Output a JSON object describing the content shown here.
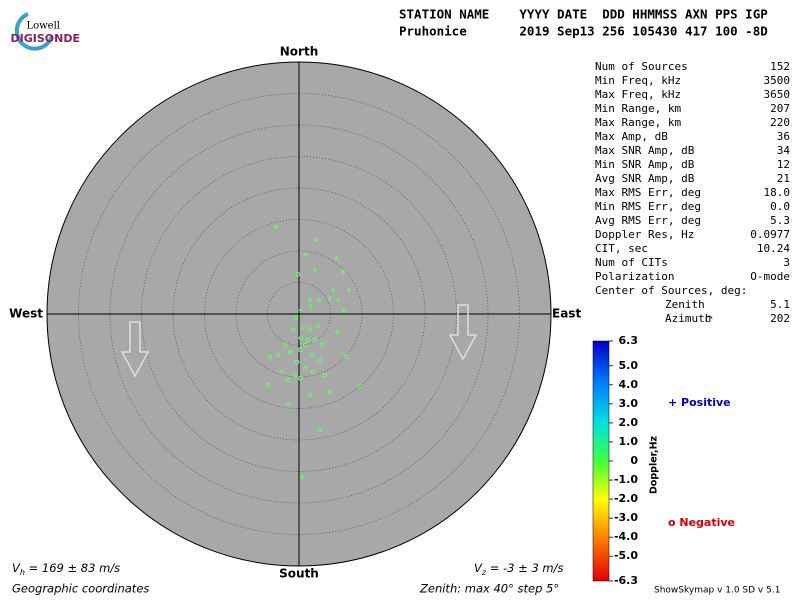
{
  "logo": {
    "line1": "Lowell",
    "line2": "DIGISONDE"
  },
  "header": {
    "labels": "STATION NAME    YYYY DATE  DDD HHMMSS AXN PPS IGP",
    "values": "Pruhonice       2019 Sep13 256 105430 417 100 -8D"
  },
  "stats": {
    "rows": [
      {
        "label": "Num of Sources",
        "value": "152"
      },
      {
        "label": "Min Freq, kHz",
        "value": "3500"
      },
      {
        "label": "Max Freq, kHz",
        "value": "3650"
      },
      {
        "label": "Min Range, km",
        "value": "207"
      },
      {
        "label": "Max Range, km",
        "value": "220"
      },
      {
        "label": "Max Amp, dB",
        "value": "36"
      },
      {
        "label": "Max SNR Amp, dB",
        "value": "34"
      },
      {
        "label": "Min SNR Amp, dB",
        "value": "12"
      },
      {
        "label": "Avg SNR Amp, dB",
        "value": "21"
      },
      {
        "label": "Max RMS Err, deg",
        "value": "18.0"
      },
      {
        "label": "Min RMS Err, deg",
        "value": "0.0"
      },
      {
        "label": "Avg RMS Err, deg",
        "value": "5.3"
      },
      {
        "label": "Doppler Res, Hz",
        "value": "0.0977"
      },
      {
        "label": "CIT, sec",
        "value": "10.24"
      },
      {
        "label": "Num of CITs",
        "value": "3"
      },
      {
        "label": "Polarization",
        "value": "O-mode"
      }
    ],
    "center": {
      "title": "Center of Sources, deg:",
      "rows": [
        {
          "label": "Zenith",
          "value": "5.1"
        },
        {
          "label": "Azimuth",
          "value": "202"
        }
      ]
    }
  },
  "footer": {
    "vh": {
      "symbol": "V",
      "sub": "h",
      "text": " = 169 ± 83 m/s"
    },
    "vz": {
      "symbol": "V",
      "sub": "z",
      "text": " = -3 ± 3 m/s"
    },
    "coordinates": "Geographic coordinates",
    "zenith": "Zenith: max 40°  step 5°",
    "version": "ShowSkymap v 1.0  SD v 5.1"
  },
  "chart_data": {
    "type": "polar-scatter",
    "directions": {
      "north": "North",
      "south": "South",
      "east": "East",
      "west": "West"
    },
    "rlim": [
      0,
      40
    ],
    "rticks": [
      5,
      10,
      15,
      20,
      25,
      30,
      35
    ],
    "series": [
      {
        "name": "+ Positive",
        "marker": "plus",
        "color": "#66ff66",
        "x": [
          -3.7,
          2.7,
          1.0,
          2.5,
          5.9,
          7.0,
          5.4,
          7.9,
          4.9,
          1.7,
          3.2,
          6.2,
          7.1,
          6.0,
          0.2,
          0.5,
          1.9
        ],
        "y": [
          13.8,
          11.7,
          9.4,
          7.0,
          8.9,
          6.7,
          3.8,
          3.8,
          2.5,
          2.2,
          2.2,
          2.2,
          0.6,
          -2.9,
          0.6,
          -25.9,
          1.3
        ]
      },
      {
        "name": "o Negative",
        "marker": "circle",
        "color": "#66ff66",
        "x": [
          -0.2,
          -0.5,
          -1.0,
          0.6,
          1.7,
          3.0,
          -2.2,
          -1.4,
          -4.6,
          -3.3,
          0.2,
          1.0,
          2.5,
          2.1,
          3.3,
          -0.3,
          1.0,
          2.2,
          -0.6,
          0.2,
          -1.7,
          -4.9,
          -2.7,
          4.1,
          4.9,
          1.7,
          -1.7,
          9.7,
          3.3,
          7.5,
          3.7,
          1.4,
          0.3
        ],
        "y": [
          6.3,
          -0.6,
          -2.5,
          -2.2,
          -2.5,
          -1.9,
          -4.9,
          -6.0,
          -6.8,
          -6.5,
          -5.7,
          -4.9,
          -4.1,
          -6.5,
          -7.3,
          -7.6,
          -8.6,
          -9.2,
          -9.7,
          -10.2,
          -10.5,
          -11.3,
          -9.2,
          -9.7,
          -12.4,
          -12.9,
          -14.4,
          -11.4,
          -18.4,
          -6.8,
          -4.9,
          -4.1,
          -3.8
        ]
      }
    ],
    "colorbar": {
      "label": "Doppler,Hz",
      "lim": [
        -6.3,
        6.3
      ],
      "ticks": [
        6.3,
        {
          "value": 5,
          "label": "5.0"
        },
        {
          "value": 4,
          "label": "4.0"
        },
        {
          "value": 3,
          "label": "3.0"
        },
        {
          "value": 2,
          "label": "2.0"
        },
        {
          "value": 1,
          "label": "1.0"
        },
        0,
        {
          "value": -1,
          "label": "-1.0"
        },
        {
          "value": -2,
          "label": "-2.0"
        },
        {
          "value": -3,
          "label": "-3.0"
        },
        {
          "value": -4,
          "label": "-4.0"
        },
        {
          "value": -5,
          "label": "-5.0"
        },
        -6.3
      ]
    }
  }
}
